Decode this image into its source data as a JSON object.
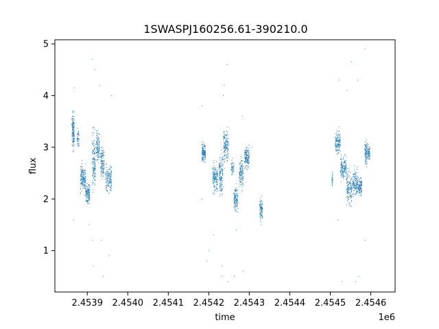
{
  "chart_data": {
    "type": "scatter",
    "title": "1SWASPJ160256.61-390210.0",
    "xlabel": "time",
    "ylabel": "flux",
    "x_offset_label": "1e6",
    "xlim": [
      2453820,
      2454660
    ],
    "ylim": [
      0.2,
      5.08
    ],
    "grid": false,
    "marker_color": "#1f77b4",
    "x_ticks": [
      2453900,
      2454000,
      2454100,
      2454200,
      2454300,
      2454400,
      2454500,
      2454600
    ],
    "x_tick_labels": [
      "2.4539",
      "2.4540",
      "2.4541",
      "2.4542",
      "2.4543",
      "2.4544",
      "2.4545",
      "2.4546"
    ],
    "y_ticks": [
      1,
      2,
      3,
      4,
      5
    ],
    "y_tick_labels": [
      "1",
      "2",
      "3",
      "4",
      "5"
    ],
    "clusters": [
      {
        "t0": 2453862,
        "t1": 2453868,
        "ymin": 2.8,
        "ymax": 4.1,
        "ymid": 3.3,
        "n": 140
      },
      {
        "t0": 2453875,
        "t1": 2453880,
        "ymin": 2.9,
        "ymax": 3.5,
        "ymid": 3.2,
        "n": 40
      },
      {
        "t0": 2453883,
        "t1": 2453896,
        "ymin": 1.8,
        "ymax": 2.8,
        "ymid": 2.4,
        "n": 170
      },
      {
        "t0": 2453896,
        "t1": 2453906,
        "ymin": 1.9,
        "ymax": 2.6,
        "ymid": 2.1,
        "n": 130
      },
      {
        "t0": 2453912,
        "t1": 2453920,
        "ymin": 1.8,
        "ymax": 3.9,
        "ymid": 2.7,
        "n": 140
      },
      {
        "t0": 2453922,
        "t1": 2453930,
        "ymin": 2.4,
        "ymax": 3.4,
        "ymid": 3.0,
        "n": 110
      },
      {
        "t0": 2453933,
        "t1": 2453942,
        "ymin": 2.2,
        "ymax": 3.2,
        "ymid": 2.7,
        "n": 120
      },
      {
        "t0": 2453945,
        "t1": 2453960,
        "ymin": 1.8,
        "ymax": 2.9,
        "ymid": 2.4,
        "n": 140
      },
      {
        "t0": 2454183,
        "t1": 2454192,
        "ymin": 2.6,
        "ymax": 3.3,
        "ymid": 2.9,
        "n": 130
      },
      {
        "t0": 2454210,
        "t1": 2454222,
        "ymin": 1.9,
        "ymax": 2.8,
        "ymid": 2.4,
        "n": 150
      },
      {
        "t0": 2454225,
        "t1": 2454235,
        "ymin": 1.7,
        "ymax": 3.1,
        "ymid": 2.5,
        "n": 140
      },
      {
        "t0": 2454236,
        "t1": 2454248,
        "ymin": 2.4,
        "ymax": 3.6,
        "ymid": 3.0,
        "n": 150
      },
      {
        "t0": 2454255,
        "t1": 2454262,
        "ymin": 2.4,
        "ymax": 2.9,
        "ymid": 2.6,
        "n": 50
      },
      {
        "t0": 2454262,
        "t1": 2454272,
        "ymin": 1.6,
        "ymax": 2.4,
        "ymid": 2.0,
        "n": 120
      },
      {
        "t0": 2454275,
        "t1": 2454285,
        "ymin": 2.0,
        "ymax": 3.1,
        "ymid": 2.5,
        "n": 120
      },
      {
        "t0": 2454288,
        "t1": 2454300,
        "ymin": 2.4,
        "ymax": 3.2,
        "ymid": 2.8,
        "n": 150
      },
      {
        "t0": 2454326,
        "t1": 2454333,
        "ymin": 1.5,
        "ymax": 2.2,
        "ymid": 1.8,
        "n": 90
      },
      {
        "t0": 2454504,
        "t1": 2454506,
        "ymin": 2.1,
        "ymax": 2.6,
        "ymid": 2.35,
        "n": 25
      },
      {
        "t0": 2454512,
        "t1": 2454525,
        "ymin": 2.7,
        "ymax": 3.5,
        "ymid": 3.1,
        "n": 140
      },
      {
        "t0": 2454525,
        "t1": 2454540,
        "ymin": 2.1,
        "ymax": 3.0,
        "ymid": 2.6,
        "n": 150
      },
      {
        "t0": 2454540,
        "t1": 2454553,
        "ymin": 1.6,
        "ymax": 2.8,
        "ymid": 2.2,
        "n": 140
      },
      {
        "t0": 2454555,
        "t1": 2454568,
        "ymin": 1.9,
        "ymax": 2.8,
        "ymid": 2.3,
        "n": 140
      },
      {
        "t0": 2454568,
        "t1": 2454578,
        "ymin": 2.0,
        "ymax": 2.6,
        "ymid": 2.25,
        "n": 110
      },
      {
        "t0": 2454585,
        "t1": 2454592,
        "ymin": 2.5,
        "ymax": 3.3,
        "ymid": 2.9,
        "n": 90
      },
      {
        "t0": 2454592,
        "t1": 2454598,
        "ymin": 2.6,
        "ymax": 3.2,
        "ymid": 2.9,
        "n": 60
      }
    ],
    "outliers": [
      [
        2453866,
        1.6
      ],
      [
        2453868,
        4.15
      ],
      [
        2453913,
        4.7
      ],
      [
        2453918,
        4.5
      ],
      [
        2453915,
        0.7
      ],
      [
        2453913,
        1.2
      ],
      [
        2453940,
        0.5
      ],
      [
        2453955,
        0.9
      ],
      [
        2453905,
        1.5
      ],
      [
        2453930,
        4.2
      ],
      [
        2453960,
        4.0
      ],
      [
        2453935,
        1.2
      ],
      [
        2454185,
        3.8
      ],
      [
        2454183,
        2.0
      ],
      [
        2454195,
        0.8
      ],
      [
        2454200,
        1.0
      ],
      [
        2454212,
        1.3
      ],
      [
        2454232,
        0.5
      ],
      [
        2454233,
        0.7
      ],
      [
        2454236,
        4.0
      ],
      [
        2454238,
        4.2
      ],
      [
        2454245,
        4.6
      ],
      [
        2454247,
        0.4
      ],
      [
        2454263,
        0.5
      ],
      [
        2454268,
        1.4
      ],
      [
        2454283,
        3.6
      ],
      [
        2454285,
        0.6
      ],
      [
        2454306,
        3.0
      ],
      [
        2454330,
        1.5
      ],
      [
        2454541,
        4.1
      ],
      [
        2454552,
        4.65
      ],
      [
        2454563,
        0.4
      ],
      [
        2454568,
        4.3
      ],
      [
        2454570,
        0.5
      ],
      [
        2454585,
        4.9
      ],
      [
        2454586,
        1.2
      ],
      [
        2454528,
        0.4
      ],
      [
        2454519,
        1.6
      ],
      [
        2454522,
        4.3
      ]
    ]
  }
}
